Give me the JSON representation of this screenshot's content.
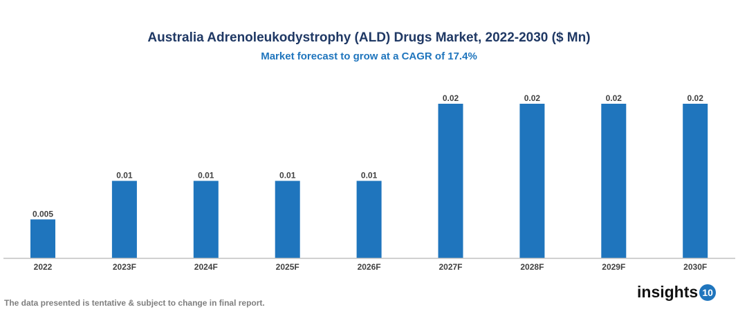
{
  "chart_data": {
    "type": "bar",
    "title": "Australia Adrenoleukodystrophy (ALD) Drugs Market, 2022-2030 ($ Mn)",
    "subtitle": "Market forecast to grow at a CAGR of 17.4%",
    "categories": [
      "2022",
      "2023F",
      "2024F",
      "2025F",
      "2026F",
      "2027F",
      "2028F",
      "2029F",
      "2030F"
    ],
    "values": [
      0.005,
      0.01,
      0.01,
      0.01,
      0.01,
      0.02,
      0.02,
      0.02,
      0.02
    ],
    "data_labels": [
      "0.005",
      "0.01",
      "0.01",
      "0.01",
      "0.01",
      "0.02",
      "0.02",
      "0.02",
      "0.02"
    ],
    "xlabel": "",
    "ylabel": "",
    "ylim": [
      0,
      0.02
    ],
    "grid": false,
    "bar_color": "#1f75bd"
  },
  "footer": {
    "note": "The data presented is tentative & subject to change in final report.",
    "logo_text": "insights",
    "logo_number": "10"
  }
}
